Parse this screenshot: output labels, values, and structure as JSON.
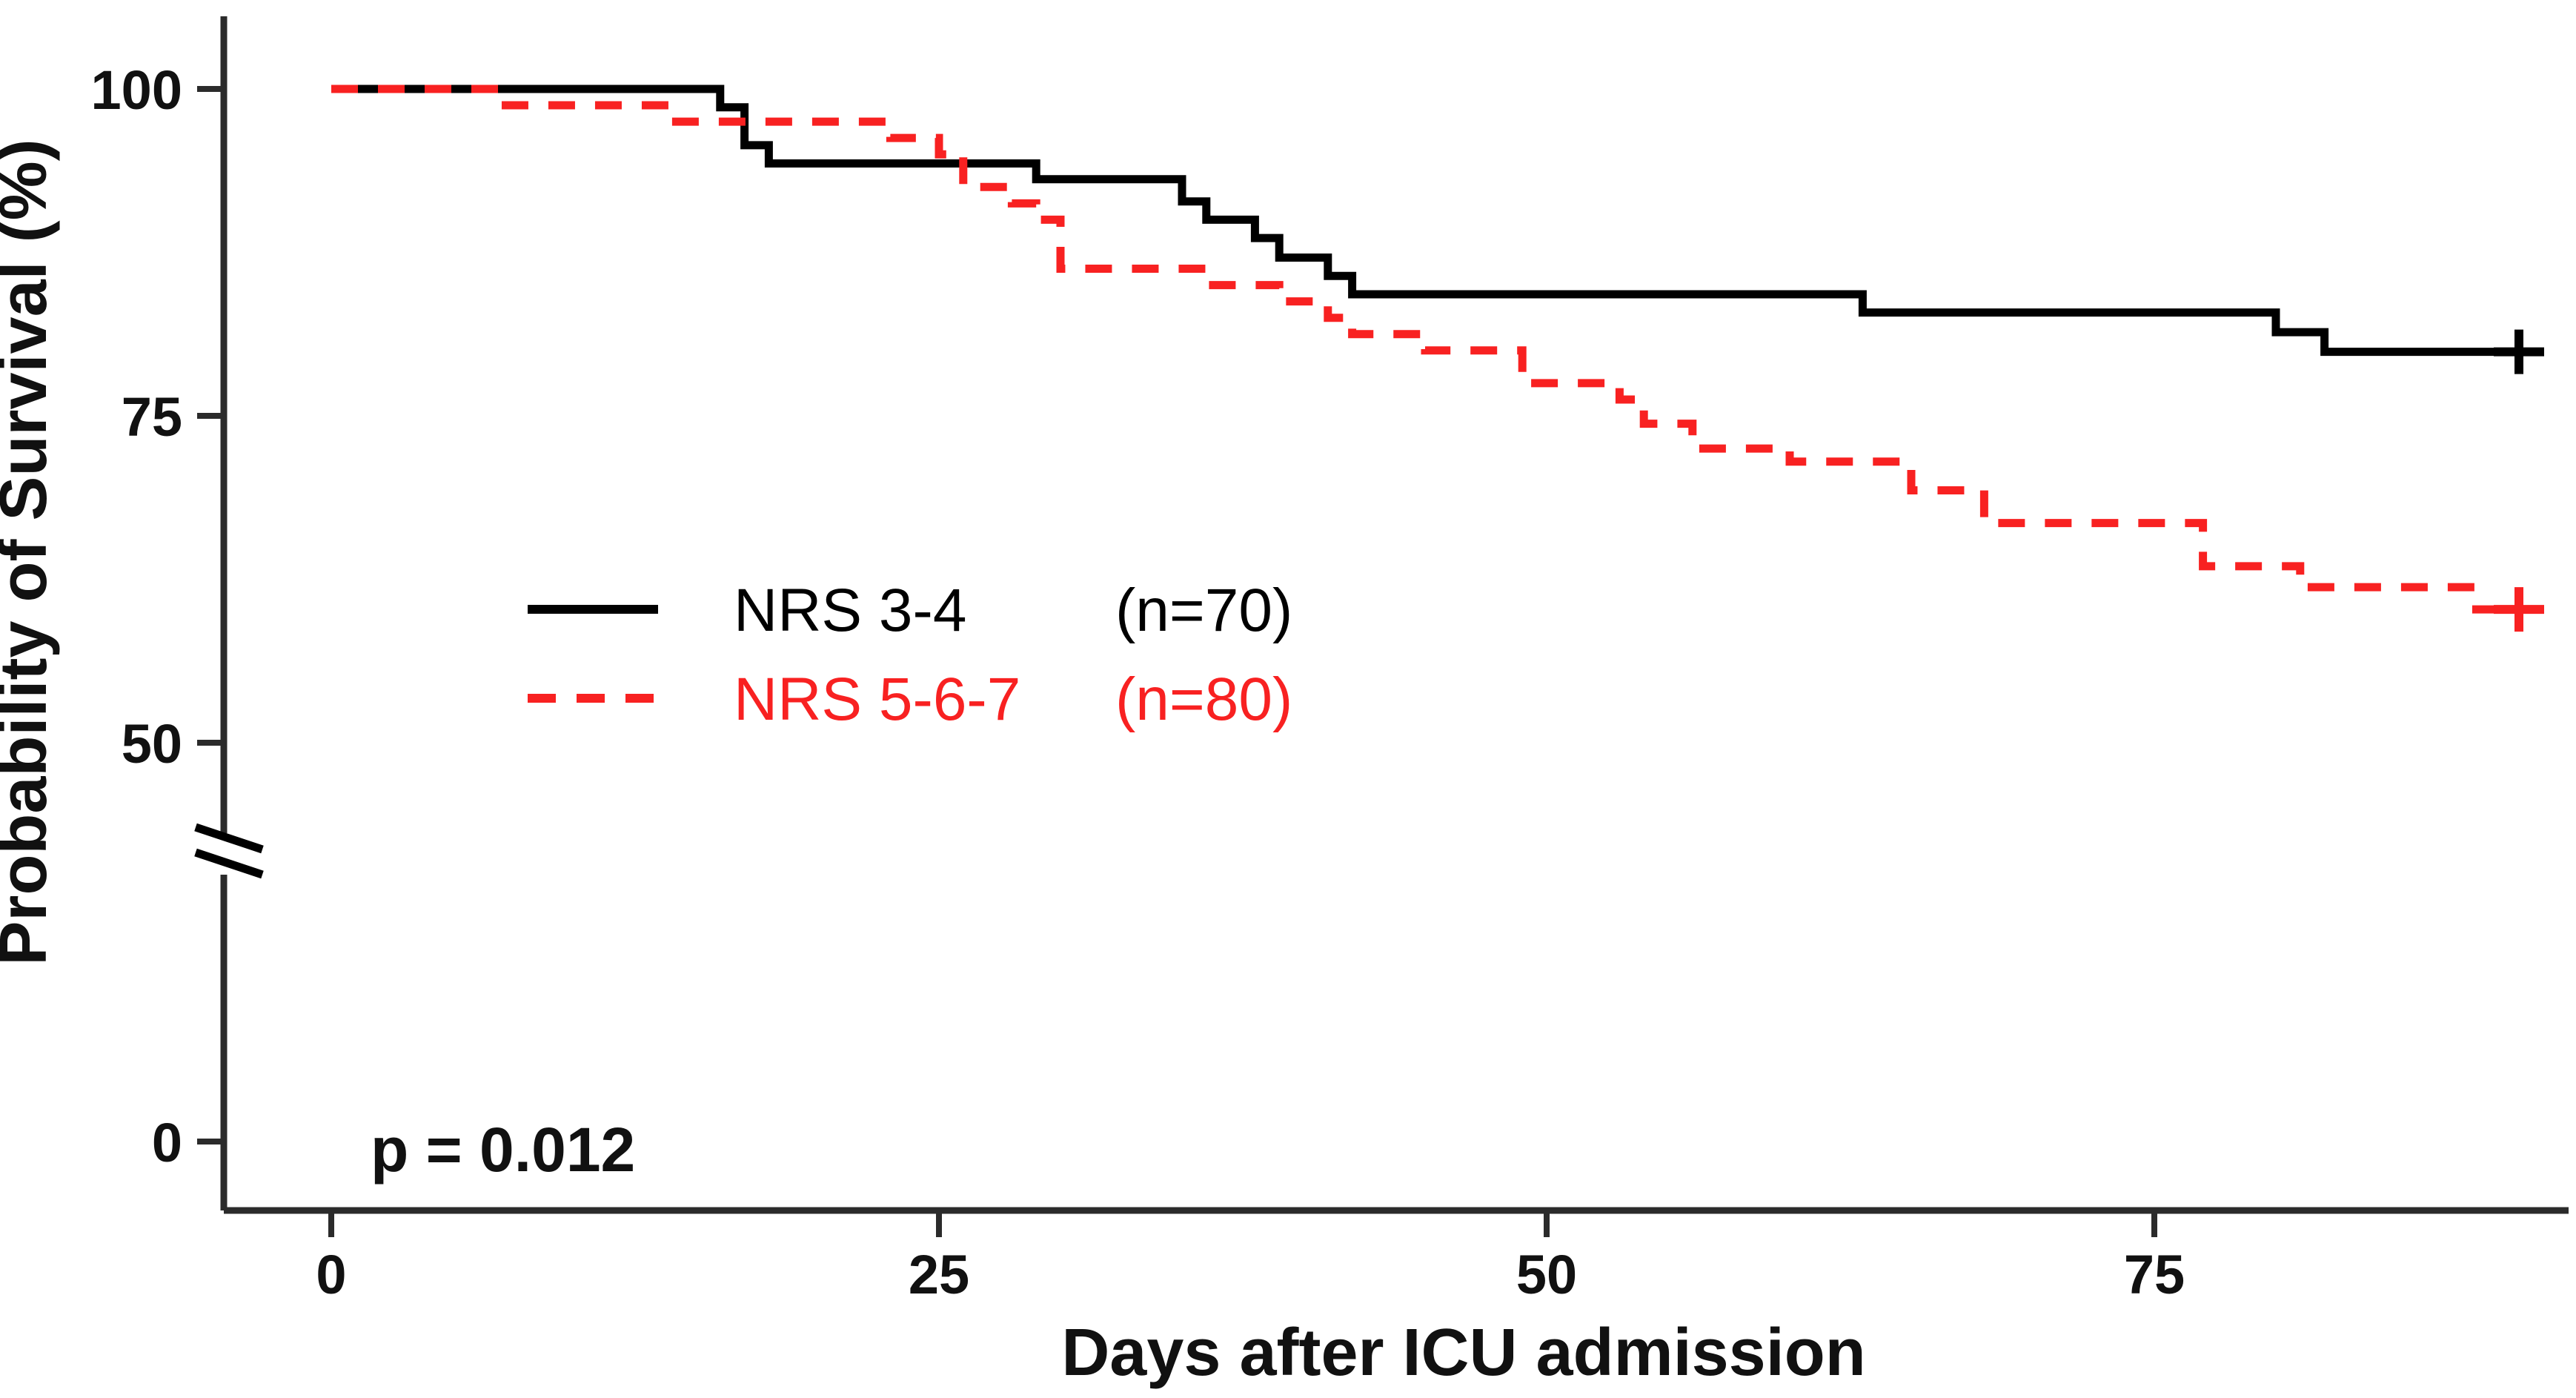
{
  "figure": {
    "y_axis_label": "Probability of Survival (%)",
    "x_axis_label": "Days after ICU admission",
    "p_value_text": "p = 0.012"
  },
  "chart_data": {
    "type": "line",
    "subtype": "kaplan-meier-step-survival",
    "title": "",
    "xlabel": "Days after ICU admission",
    "ylabel": "Probability of Survival (%)",
    "x_ticks": [
      0,
      25,
      50,
      75
    ],
    "y_ticks": [
      100,
      75,
      50,
      0
    ],
    "y_axis_break_between": [
      0,
      50
    ],
    "xlim": [
      0,
      92
    ],
    "ylim_visible": [
      50,
      100
    ],
    "grid": "off",
    "legend_position": "center-left-inside",
    "p_value": "p = 0.012",
    "series": [
      {
        "name": "NRS 3-4",
        "count_label": "(n=70)",
        "color": "#000000",
        "line_style": "solid",
        "steps_day_percent": [
          [
            0,
            100
          ],
          [
            16,
            98.6
          ],
          [
            17,
            95.7
          ],
          [
            18,
            94.3
          ],
          [
            29,
            93.1
          ],
          [
            35,
            91.4
          ],
          [
            36,
            90.0
          ],
          [
            38,
            88.6
          ],
          [
            39,
            87.1
          ],
          [
            41,
            85.7
          ],
          [
            42,
            84.3
          ],
          [
            63,
            82.9
          ],
          [
            80,
            81.4
          ],
          [
            82,
            79.9
          ]
        ],
        "censor_day": 90,
        "censor_percent": 79.9,
        "end_day": 90.6
      },
      {
        "name": "NRS 5-6-7",
        "count_label": "(n=80)",
        "color": "#f82121",
        "line_style": "dashed",
        "steps_day_percent": [
          [
            0,
            100
          ],
          [
            7,
            98.75
          ],
          [
            14,
            97.5
          ],
          [
            23,
            96.25
          ],
          [
            25,
            95.0
          ],
          [
            26,
            92.5
          ],
          [
            28,
            91.25
          ],
          [
            29,
            90.0
          ],
          [
            30,
            86.25
          ],
          [
            36,
            85.0
          ],
          [
            39,
            83.75
          ],
          [
            41,
            82.5
          ],
          [
            42,
            81.25
          ],
          [
            45,
            80.0
          ],
          [
            49,
            77.5
          ],
          [
            53,
            76.25
          ],
          [
            54,
            74.4
          ],
          [
            56,
            72.5
          ],
          [
            60,
            71.5
          ],
          [
            65,
            69.3
          ],
          [
            68,
            66.8
          ],
          [
            77,
            63.5
          ],
          [
            81,
            61.9
          ],
          [
            88,
            60.2
          ]
        ],
        "censor_day": 90,
        "censor_percent": 60.2,
        "end_day": 90.3
      }
    ]
  }
}
